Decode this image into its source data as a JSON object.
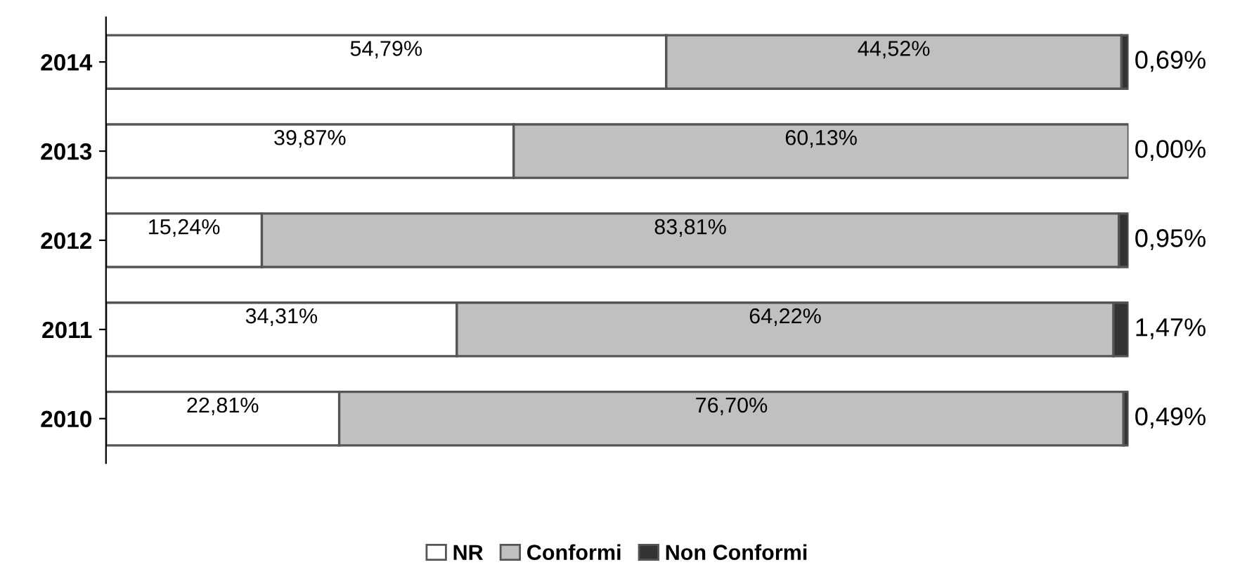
{
  "chart_data": {
    "type": "bar",
    "orientation": "horizontal",
    "stacked": true,
    "categories": [
      "2014",
      "2013",
      "2012",
      "2011",
      "2010"
    ],
    "series": [
      {
        "name": "NR",
        "color": "#ffffff",
        "values": [
          54.79,
          39.87,
          15.24,
          34.31,
          22.81
        ],
        "value_labels": [
          "54,79%",
          "39,87%",
          "15,24%",
          "34,31%",
          "22,81%"
        ]
      },
      {
        "name": "Conformi",
        "color": "#c0c0c0",
        "values": [
          44.52,
          60.13,
          83.81,
          64.22,
          76.7
        ],
        "value_labels": [
          "44,52%",
          "60,13%",
          "83,81%",
          "64,22%",
          "76,70%"
        ]
      },
      {
        "name": "Non Conformi",
        "color": "#333333",
        "values": [
          0.69,
          0.0,
          0.95,
          1.47,
          0.49
        ],
        "value_labels": [
          "0,69%",
          "0,00%",
          "0,95%",
          "1,47%",
          "0,49%"
        ]
      }
    ],
    "legend": "bottom",
    "tick_labels": "y",
    "grid": false
  }
}
